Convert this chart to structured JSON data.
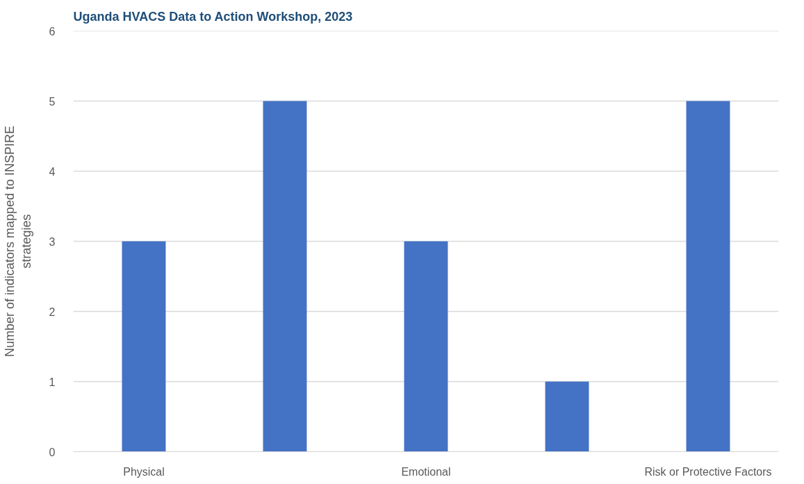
{
  "chart_data": {
    "type": "bar",
    "title": "Uganda HVACS Data to Action Workshop, 2023",
    "ylabel": "Number of indicators mapped to INSPIRE strategies",
    "categories": [
      "Physical",
      null,
      "Emotional",
      null,
      "Risk or Protective Factors"
    ],
    "values": [
      3,
      5,
      3,
      1,
      5
    ],
    "color": "#4472c4",
    "ylim": [
      0,
      6
    ],
    "yticks": [
      0,
      1,
      2,
      3,
      4,
      5,
      6
    ],
    "grid": "y"
  }
}
